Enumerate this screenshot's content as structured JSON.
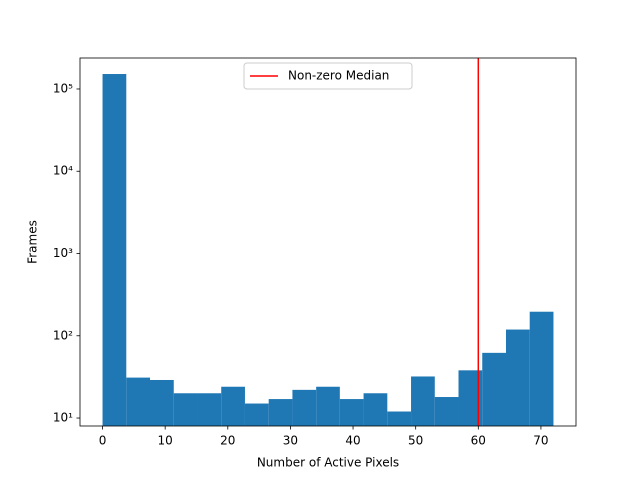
{
  "chart_data": {
    "type": "histogram",
    "xlabel": "Number of Active Pixels",
    "ylabel": "Frames",
    "bins": [
      0,
      3.79,
      7.58,
      11.37,
      15.16,
      18.95,
      22.74,
      26.53,
      30.32,
      34.11,
      37.89,
      41.68,
      45.47,
      49.26,
      53.05,
      56.84,
      60.63,
      64.42,
      68.21,
      72
    ],
    "values": [
      152000,
      31,
      29,
      20,
      20,
      24,
      15,
      17,
      22,
      24,
      17,
      20,
      12,
      32,
      18,
      38,
      62,
      119,
      196
    ],
    "color": "#1f77b4",
    "xlim": [
      -3.6,
      75.6
    ],
    "xticks": [
      0,
      10,
      20,
      30,
      40,
      50,
      60,
      70
    ],
    "ylim": [
      8,
      238000
    ],
    "log_y": true,
    "yticks": [
      {
        "value": 10,
        "label": "10¹"
      },
      {
        "value": 100,
        "label": "10²"
      },
      {
        "value": 1000,
        "label": "10³"
      },
      {
        "value": 10000,
        "label": "10⁴"
      },
      {
        "value": 100000,
        "label": "10⁵"
      }
    ],
    "vlines": [
      {
        "name": "Non-zero Median",
        "value": 60,
        "color": "#ff0000"
      }
    ],
    "legend": "upper center"
  }
}
